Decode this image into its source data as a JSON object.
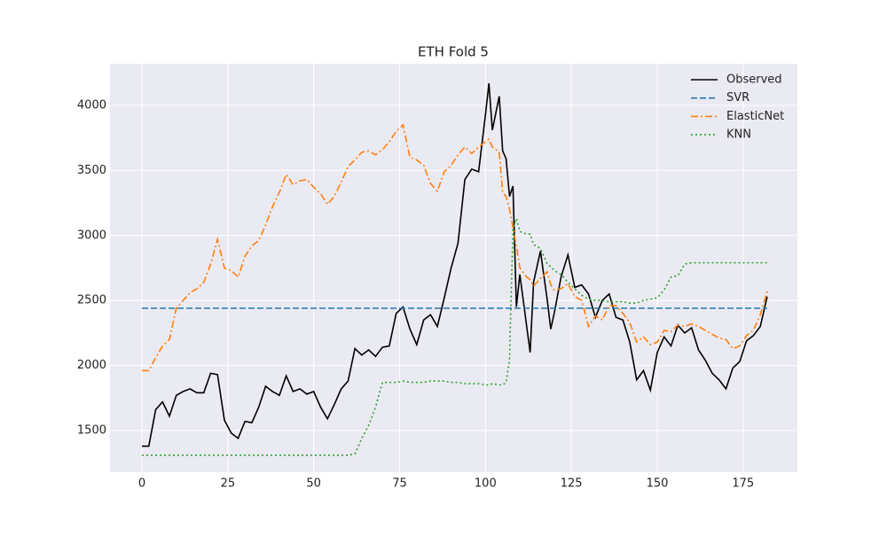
{
  "chart_data": {
    "type": "line",
    "title": "ETH Fold 5",
    "x": [
      0,
      2,
      4,
      6,
      8,
      10,
      12,
      14,
      16,
      18,
      20,
      22,
      24,
      26,
      28,
      30,
      32,
      34,
      36,
      38,
      40,
      42,
      44,
      46,
      48,
      50,
      52,
      54,
      56,
      58,
      60,
      62,
      64,
      66,
      68,
      70,
      72,
      74,
      76,
      78,
      80,
      82,
      84,
      86,
      88,
      90,
      92,
      94,
      96,
      98,
      100,
      101,
      102,
      104,
      105,
      106,
      107,
      108,
      109,
      110,
      112,
      113,
      114,
      116,
      118,
      119,
      120,
      122,
      124,
      126,
      128,
      130,
      132,
      134,
      136,
      138,
      140,
      142,
      144,
      146,
      148,
      150,
      152,
      154,
      156,
      158,
      160,
      162,
      164,
      166,
      168,
      170,
      172,
      174,
      176,
      178,
      180,
      182
    ],
    "series": [
      {
        "name": "Observed",
        "color": "#000000",
        "dash": "solid",
        "values": [
          1380,
          1380,
          1660,
          1720,
          1610,
          1770,
          1800,
          1820,
          1790,
          1790,
          1940,
          1930,
          1580,
          1480,
          1440,
          1570,
          1560,
          1680,
          1840,
          1800,
          1770,
          1920,
          1800,
          1820,
          1780,
          1800,
          1680,
          1590,
          1700,
          1820,
          1880,
          2130,
          2080,
          2120,
          2070,
          2140,
          2150,
          2400,
          2450,
          2280,
          2160,
          2350,
          2390,
          2300,
          2520,
          2750,
          2940,
          3430,
          3510,
          3490,
          3930,
          4170,
          3810,
          4070,
          3650,
          3590,
          3300,
          3380,
          2450,
          2700,
          2300,
          2100,
          2640,
          2880,
          2500,
          2280,
          2400,
          2680,
          2850,
          2600,
          2620,
          2550,
          2370,
          2500,
          2550,
          2370,
          2350,
          2180,
          1890,
          1960,
          1810,
          2100,
          2220,
          2150,
          2310,
          2250,
          2290,
          2120,
          2040,
          1940,
          1890,
          1820,
          1980,
          2030,
          2190,
          2230,
          2300,
          2530
        ]
      },
      {
        "name": "SVR",
        "color": "#1f77b4",
        "dash": "dashed",
        "values": [
          2440,
          2440,
          2440,
          2440,
          2440,
          2440,
          2440,
          2440,
          2440,
          2440,
          2440,
          2440,
          2440,
          2440,
          2440,
          2440,
          2440,
          2440,
          2440,
          2440,
          2440,
          2440,
          2440,
          2440,
          2440,
          2440,
          2440,
          2440,
          2440,
          2440,
          2440,
          2440,
          2440,
          2440,
          2440,
          2440,
          2440,
          2440,
          2440,
          2440,
          2440,
          2440,
          2440,
          2440,
          2440,
          2440,
          2440,
          2440,
          2440,
          2440,
          2440,
          2440,
          2440,
          2440,
          2440,
          2440,
          2440,
          2440,
          2440,
          2440,
          2440,
          2440,
          2440,
          2440,
          2440,
          2440,
          2440,
          2440,
          2440,
          2440,
          2440,
          2440,
          2440,
          2440,
          2440,
          2440,
          2440,
          2440,
          2440,
          2440,
          2440,
          2440,
          2440,
          2440,
          2440,
          2440,
          2440,
          2440,
          2440,
          2440,
          2440,
          2440,
          2440,
          2440,
          2440,
          2440,
          2440,
          2440
        ]
      },
      {
        "name": "ElasticNet",
        "color": "#ff7f0e",
        "dash": "dashdot",
        "values": [
          1960,
          1960,
          2060,
          2150,
          2200,
          2440,
          2500,
          2560,
          2590,
          2640,
          2780,
          2970,
          2750,
          2730,
          2680,
          2840,
          2920,
          2960,
          3080,
          3220,
          3330,
          3470,
          3390,
          3420,
          3430,
          3370,
          3320,
          3240,
          3300,
          3410,
          3530,
          3580,
          3640,
          3650,
          3620,
          3660,
          3720,
          3800,
          3850,
          3600,
          3580,
          3540,
          3400,
          3340,
          3490,
          3540,
          3620,
          3680,
          3630,
          3680,
          3720,
          3740,
          3680,
          3640,
          3330,
          3300,
          3200,
          3060,
          2920,
          2750,
          2680,
          2660,
          2610,
          2670,
          2720,
          2620,
          2580,
          2590,
          2630,
          2530,
          2500,
          2300,
          2380,
          2350,
          2460,
          2460,
          2400,
          2330,
          2180,
          2220,
          2160,
          2180,
          2270,
          2260,
          2310,
          2300,
          2320,
          2300,
          2270,
          2240,
          2210,
          2200,
          2130,
          2150,
          2230,
          2270,
          2390,
          2570
        ]
      },
      {
        "name": "KNN",
        "color": "#2ca02c",
        "dash": "dotted",
        "values": [
          1310,
          1310,
          1310,
          1310,
          1310,
          1310,
          1310,
          1310,
          1310,
          1310,
          1310,
          1310,
          1310,
          1310,
          1310,
          1310,
          1310,
          1310,
          1310,
          1310,
          1310,
          1310,
          1310,
          1310,
          1310,
          1310,
          1310,
          1310,
          1310,
          1310,
          1310,
          1320,
          1440,
          1540,
          1680,
          1870,
          1870,
          1870,
          1880,
          1870,
          1870,
          1870,
          1880,
          1880,
          1880,
          1870,
          1870,
          1860,
          1860,
          1860,
          1850,
          1850,
          1860,
          1850,
          1850,
          1870,
          2050,
          3050,
          3130,
          3030,
          3010,
          3010,
          2930,
          2900,
          2780,
          2760,
          2730,
          2700,
          2640,
          2590,
          2540,
          2510,
          2500,
          2500,
          2490,
          2490,
          2490,
          2480,
          2480,
          2500,
          2510,
          2520,
          2580,
          2680,
          2690,
          2780,
          2790,
          2790,
          2790,
          2790,
          2790,
          2790,
          2790,
          2790,
          2790,
          2790,
          2790,
          2790
        ]
      }
    ],
    "xlim": [
      -9.3,
      190.8
    ],
    "ylim": [
      1180,
      4320
    ],
    "xticks": [
      0,
      25,
      50,
      75,
      100,
      125,
      150,
      175
    ],
    "yticks": [
      1500,
      2000,
      2500,
      3000,
      3500,
      4000
    ],
    "grid": true,
    "legend": "upper right"
  }
}
